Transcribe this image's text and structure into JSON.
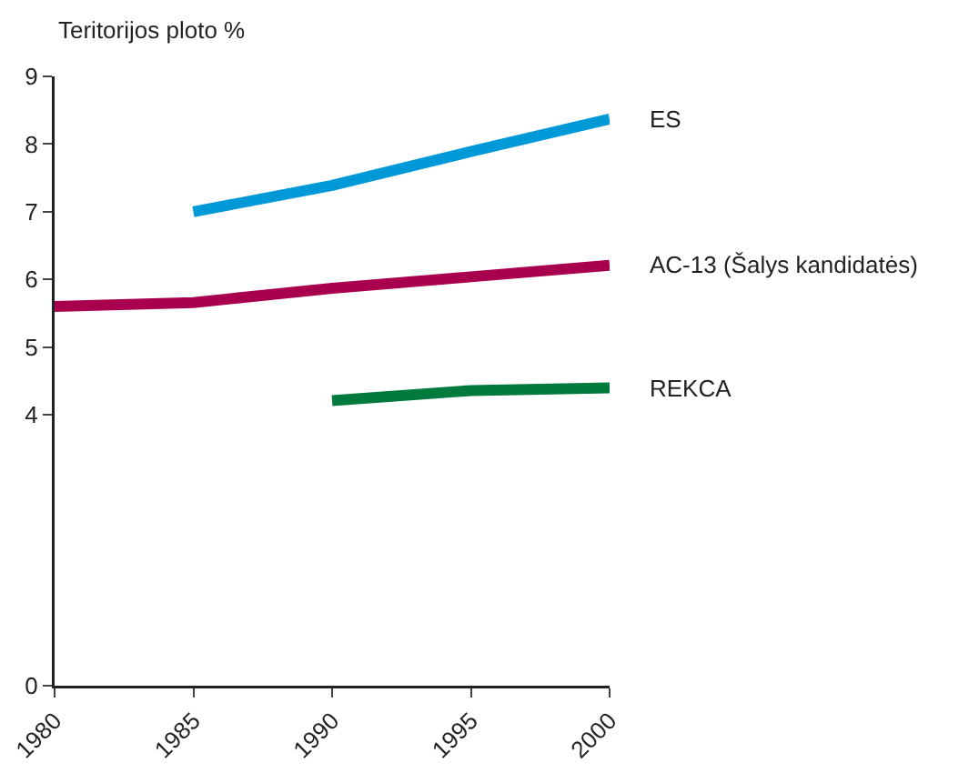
{
  "chart_data": {
    "type": "line",
    "ylabel": "Teritorijos ploto %",
    "x": [
      1980,
      1985,
      1990,
      1995,
      2000
    ],
    "series": [
      {
        "name": "ES",
        "color": "#0099d8",
        "values": [
          null,
          7.0,
          7.39,
          7.89,
          8.37
        ]
      },
      {
        "name": "AC-13 (Šalys kandidatės)",
        "color": "#a8004f",
        "values": [
          5.6,
          5.66,
          5.87,
          6.04,
          6.21
        ]
      },
      {
        "name": "REKCA",
        "color": "#007a3d",
        "values": [
          null,
          null,
          4.21,
          4.36,
          4.4
        ]
      }
    ],
    "xlim": [
      1980,
      2000
    ],
    "xticks": [
      1980,
      1985,
      1990,
      1995,
      2000
    ],
    "ylim": [
      0,
      9
    ],
    "yticks": [
      0,
      4,
      5,
      6,
      7,
      8,
      9
    ],
    "grid": false,
    "legend": false,
    "marker": "none",
    "line_style": "solid"
  }
}
